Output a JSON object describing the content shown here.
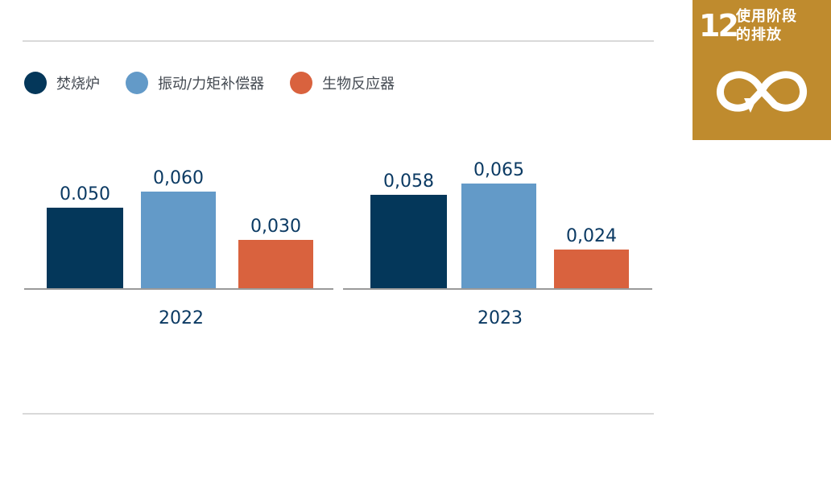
{
  "legend": [
    {
      "label": "焚烧炉",
      "color": "#04375a"
    },
    {
      "label": "振动/力矩补偿器",
      "color": "#639ac8"
    },
    {
      "label": "生物反应器",
      "color": "#d9623e"
    }
  ],
  "badge": {
    "number": "12",
    "line1": "使用阶段",
    "line2": "的排放",
    "icon": "infinity-cycle-icon",
    "color": "#bf8b2e"
  },
  "chart_data": {
    "type": "bar",
    "categories": [
      "2022",
      "2023"
    ],
    "series": [
      {
        "name": "焚烧炉",
        "color": "#04375a",
        "values": [
          0.05,
          0.058
        ],
        "labels": [
          "0.050",
          "0,058"
        ]
      },
      {
        "name": "振动/力矩补偿器",
        "color": "#639ac8",
        "values": [
          0.06,
          0.065
        ],
        "labels": [
          "0,060",
          "0,065"
        ]
      },
      {
        "name": "生物反应器",
        "color": "#d9623e",
        "values": [
          0.03,
          0.024
        ],
        "labels": [
          "0,030",
          "0,024"
        ]
      }
    ],
    "ylim": [
      0,
      0.065
    ],
    "grid": false,
    "legend_position": "top-left",
    "title": "",
    "xlabel": "",
    "ylabel": ""
  }
}
